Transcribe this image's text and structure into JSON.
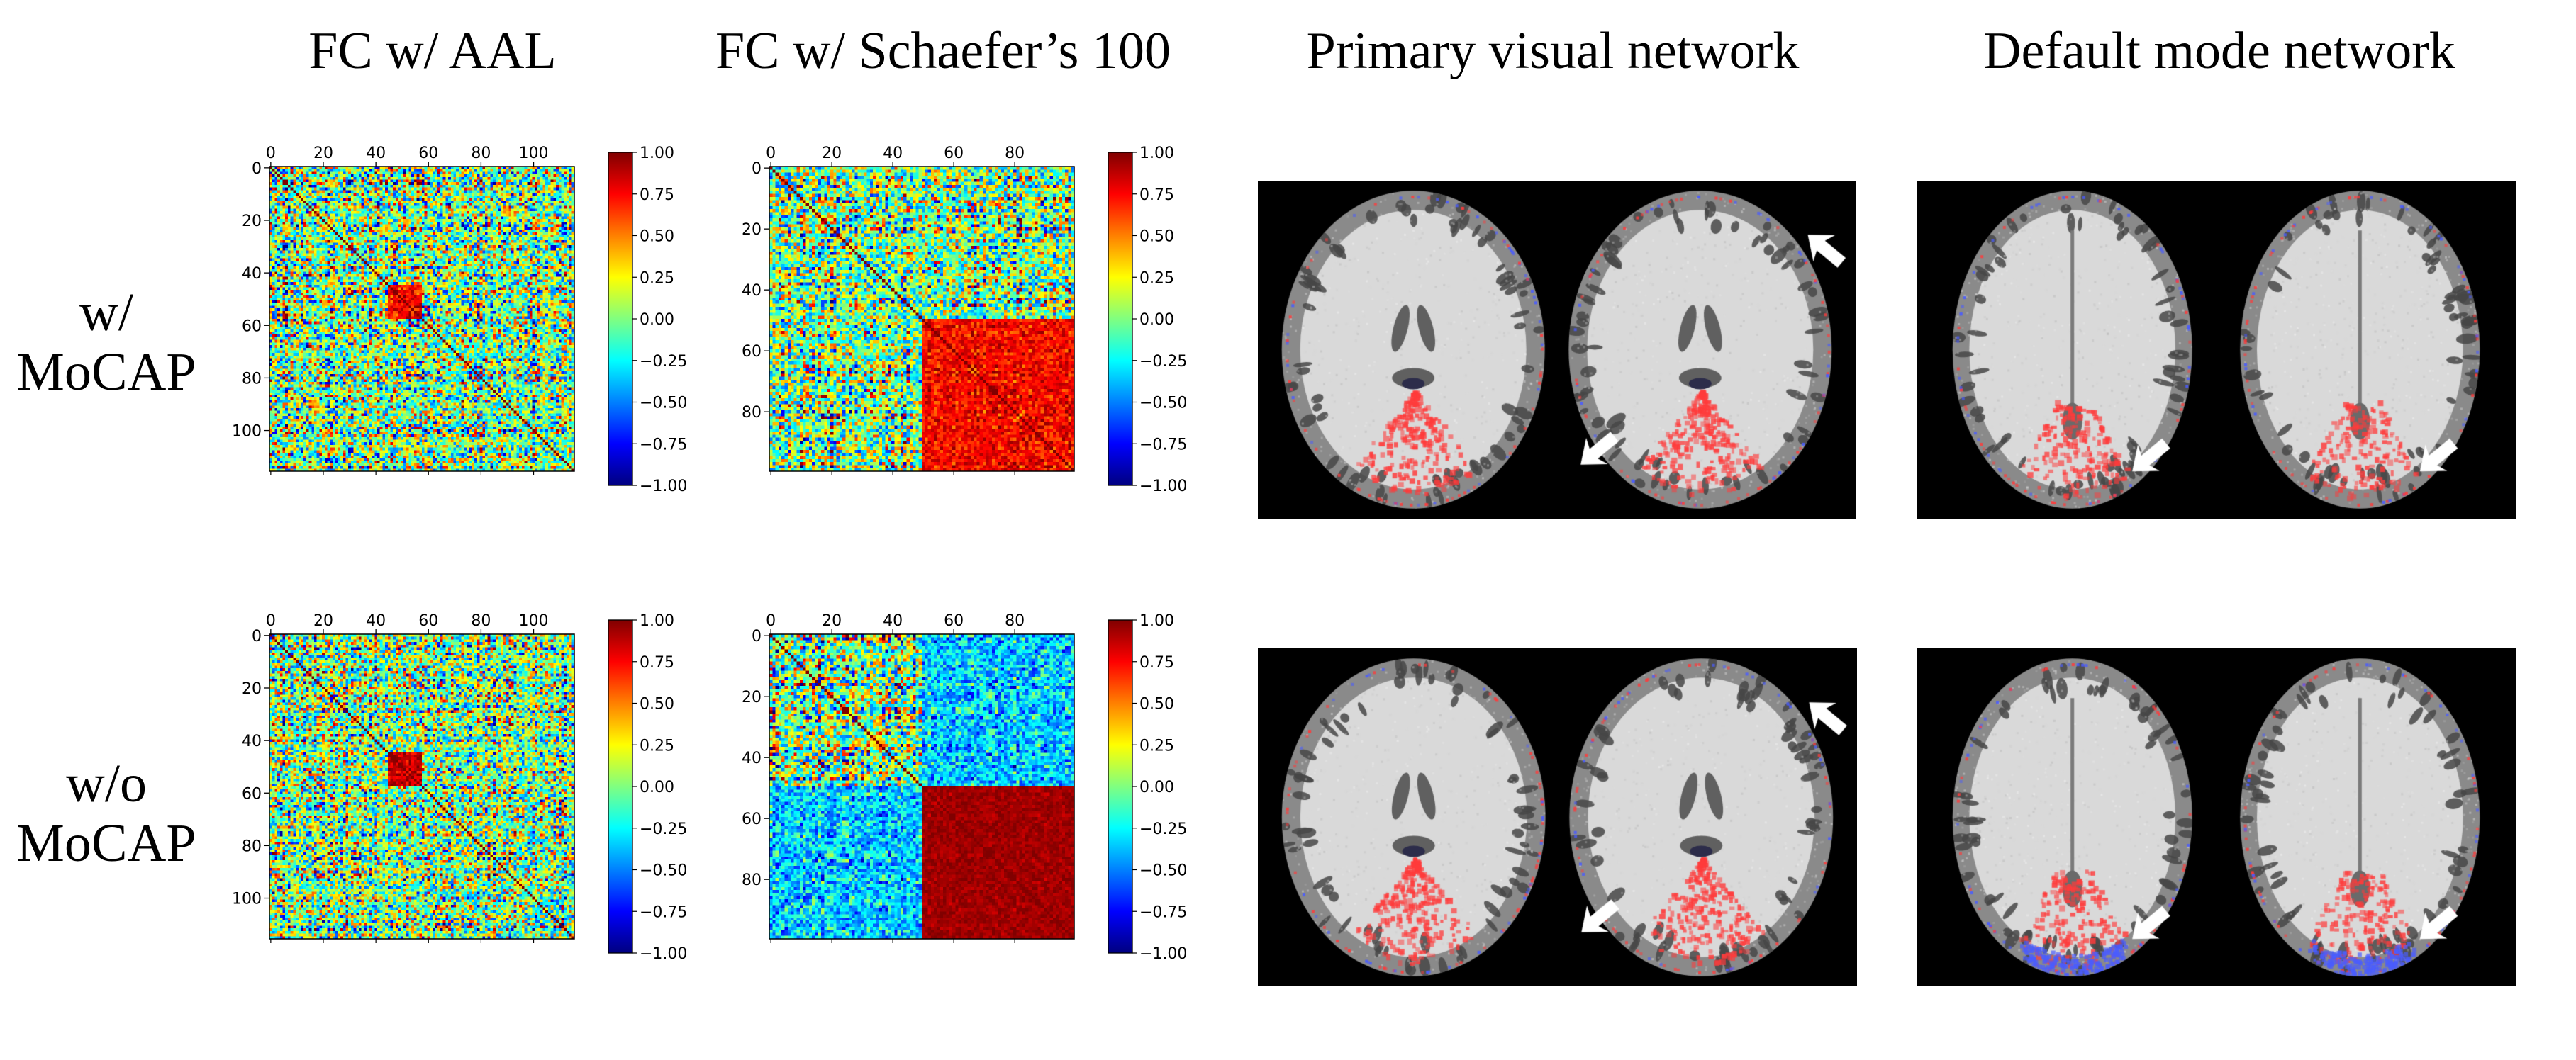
{
  "columns": [
    "FC w/ AAL",
    "FC w/ Schaefer’s 100",
    "Primary visual network",
    "Default mode network"
  ],
  "rows": [
    {
      "line1": "w/",
      "line2": "MoCAP"
    },
    {
      "line1": "w/o",
      "line2": "MoCAP"
    }
  ],
  "matrices": {
    "aal": {
      "n": 116,
      "top_ticks": [
        "0",
        "20",
        "40",
        "60",
        "80",
        "100"
      ],
      "tick_values": [
        0,
        20,
        40,
        60,
        80,
        100
      ]
    },
    "schaefer": {
      "n": 100,
      "top_ticks": [
        "0",
        "20",
        "40",
        "60",
        "80"
      ],
      "tick_values": [
        0,
        20,
        40,
        60,
        80
      ]
    }
  },
  "colorbar": {
    "ticks": [
      "1.00",
      "0.75",
      "0.50",
      "0.25",
      "0.00",
      "−0.25",
      "−0.50",
      "−0.75",
      "−1.00"
    ],
    "values": [
      1.0,
      0.75,
      0.5,
      0.25,
      0.0,
      -0.25,
      -0.5,
      -0.75,
      -1.0
    ],
    "colormap": "jet"
  },
  "colors": {
    "positive_overlay": "#ff3b3b",
    "negative_overlay": "#4a5cff",
    "brain_background": "#000000",
    "arrow": "#ffffff"
  },
  "icons": [
    "arrow-icon"
  ]
}
